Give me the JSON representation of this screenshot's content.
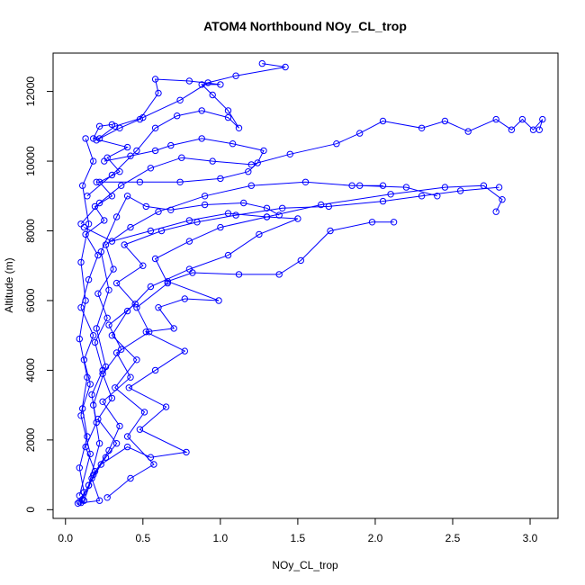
{
  "chart_data": {
    "type": "scatter",
    "title": "ATOM4 Northbound NOy_CL_trop",
    "xlabel": "NOy_CL_trop",
    "ylabel": "Altitude (m)",
    "xlim": [
      -0.08,
      3.18
    ],
    "ylim": [
      -250,
      13100
    ],
    "x_ticks": [
      0.0,
      0.5,
      1.0,
      1.5,
      2.0,
      2.5,
      3.0
    ],
    "x_tick_labels": [
      "0.0",
      "0.5",
      "1.0",
      "1.5",
      "2.0",
      "2.5",
      "3.0"
    ],
    "y_ticks": [
      0,
      2000,
      4000,
      6000,
      8000,
      10000,
      12000
    ],
    "y_tick_labels": [
      "0",
      "2000",
      "4000",
      "6000",
      "8000",
      "10000",
      "12000"
    ],
    "marker": "open-circle",
    "connected": true,
    "series_color": "#0000ff",
    "grid": false,
    "series": [
      {
        "points": [
          [
            0.1,
            200
          ],
          [
            0.12,
            500
          ],
          [
            0.09,
            1200
          ],
          [
            0.14,
            2100
          ],
          [
            0.11,
            2900
          ],
          [
            0.16,
            3600
          ],
          [
            0.12,
            4300
          ],
          [
            0.18,
            5000
          ],
          [
            0.1,
            5800
          ],
          [
            0.15,
            6600
          ],
          [
            0.21,
            7300
          ],
          [
            0.13,
            7900
          ],
          [
            0.25,
            8300
          ],
          [
            0.19,
            8700
          ],
          [
            0.3,
            9000
          ],
          [
            0.22,
            9400
          ],
          [
            0.35,
            9700
          ],
          [
            0.27,
            10100
          ],
          [
            0.4,
            10400
          ],
          [
            0.18,
            10650
          ],
          [
            0.22,
            11000
          ],
          [
            0.3,
            11050
          ]
        ]
      },
      {
        "points": [
          [
            0.08,
            180
          ],
          [
            0.22,
            260
          ],
          [
            0.17,
            900
          ],
          [
            0.26,
            1500
          ],
          [
            0.33,
            1900
          ],
          [
            0.21,
            2600
          ],
          [
            0.3,
            3200
          ],
          [
            0.24,
            3900
          ],
          [
            0.36,
            4600
          ],
          [
            0.28,
            5300
          ],
          [
            0.45,
            5900
          ],
          [
            0.33,
            6500
          ],
          [
            0.5,
            7000
          ],
          [
            0.38,
            7600
          ],
          [
            0.62,
            8000
          ],
          [
            0.85,
            8250
          ],
          [
            1.1,
            8450
          ],
          [
            1.4,
            8650
          ],
          [
            1.7,
            8700
          ],
          [
            2.05,
            8850
          ],
          [
            2.3,
            9000
          ],
          [
            2.55,
            9150
          ],
          [
            2.8,
            9250
          ]
        ]
      },
      {
        "points": [
          [
            0.09,
            220
          ],
          [
            0.15,
            700
          ],
          [
            0.23,
            1300
          ],
          [
            0.4,
            1800
          ],
          [
            0.55,
            1500
          ],
          [
            0.78,
            1650
          ],
          [
            0.48,
            2300
          ],
          [
            0.65,
            2950
          ],
          [
            0.41,
            3500
          ],
          [
            0.58,
            4000
          ],
          [
            0.77,
            4550
          ],
          [
            0.52,
            5100
          ],
          [
            0.7,
            5200
          ],
          [
            0.6,
            5800
          ],
          [
            0.77,
            6050
          ],
          [
            0.99,
            6000
          ],
          [
            0.66,
            6550
          ],
          [
            0.82,
            6800
          ],
          [
            1.12,
            6750
          ],
          [
            1.38,
            6750
          ],
          [
            1.52,
            7150
          ],
          [
            1.71,
            8000
          ],
          [
            1.98,
            8250
          ],
          [
            2.12,
            8250
          ]
        ]
      },
      {
        "points": [
          [
            0.11,
            300
          ],
          [
            0.19,
            1100
          ],
          [
            0.13,
            1800
          ],
          [
            0.2,
            2500
          ],
          [
            0.17,
            3300
          ],
          [
            0.24,
            4000
          ],
          [
            0.19,
            4800
          ],
          [
            0.27,
            5500
          ],
          [
            0.21,
            6200
          ],
          [
            0.31,
            6900
          ],
          [
            0.26,
            7600
          ],
          [
            0.42,
            8100
          ],
          [
            0.6,
            8550
          ],
          [
            0.9,
            9000
          ],
          [
            1.2,
            9300
          ],
          [
            1.55,
            9400
          ],
          [
            1.85,
            9300
          ],
          [
            2.05,
            9300
          ],
          [
            1.9,
            9300
          ],
          [
            2.2,
            9250
          ],
          [
            2.4,
            9000
          ]
        ]
      },
      {
        "points": [
          [
            0.12,
            260
          ],
          [
            0.18,
            1000
          ],
          [
            0.28,
            1700
          ],
          [
            0.35,
            2400
          ],
          [
            0.24,
            3100
          ],
          [
            0.42,
            3800
          ],
          [
            0.33,
            4500
          ],
          [
            0.54,
            5100
          ],
          [
            0.46,
            5800
          ],
          [
            0.66,
            6500
          ],
          [
            0.58,
            7200
          ],
          [
            0.8,
            7700
          ],
          [
            1.0,
            8100
          ],
          [
            1.3,
            8400
          ],
          [
            1.65,
            8750
          ],
          [
            2.1,
            9050
          ],
          [
            2.45,
            9250
          ],
          [
            2.7,
            9300
          ],
          [
            2.82,
            8900
          ],
          [
            2.78,
            8550
          ]
        ]
      },
      {
        "points": [
          [
            0.1,
            8200
          ],
          [
            0.22,
            8800
          ],
          [
            0.36,
            9300
          ],
          [
            0.55,
            9800
          ],
          [
            0.75,
            10100
          ],
          [
            0.95,
            10000
          ],
          [
            1.2,
            9900
          ],
          [
            1.45,
            10200
          ],
          [
            1.75,
            10500
          ],
          [
            1.9,
            10800
          ],
          [
            2.05,
            11150
          ],
          [
            2.3,
            10950
          ],
          [
            2.45,
            11150
          ],
          [
            2.6,
            10850
          ],
          [
            2.78,
            11200
          ],
          [
            2.88,
            10900
          ],
          [
            2.95,
            11200
          ],
          [
            3.02,
            10900
          ],
          [
            3.08,
            11200
          ],
          [
            3.06,
            10900
          ]
        ]
      },
      {
        "points": [
          [
            0.14,
            9000
          ],
          [
            0.3,
            9600
          ],
          [
            0.46,
            10300
          ],
          [
            0.58,
            10950
          ],
          [
            0.72,
            11300
          ],
          [
            0.88,
            11450
          ],
          [
            1.05,
            11250
          ],
          [
            1.12,
            10950
          ],
          [
            1.05,
            11450
          ],
          [
            0.95,
            11900
          ],
          [
            0.88,
            12200
          ],
          [
            1.0,
            12200
          ],
          [
            0.8,
            12300
          ],
          [
            0.58,
            12350
          ],
          [
            0.6,
            11950
          ],
          [
            0.48,
            11200
          ],
          [
            0.35,
            10950
          ],
          [
            0.22,
            10650
          ]
        ]
      },
      {
        "points": [
          [
            0.12,
            8100
          ],
          [
            0.3,
            7700
          ],
          [
            0.55,
            8000
          ],
          [
            0.8,
            8300
          ],
          [
            1.05,
            8500
          ],
          [
            1.3,
            8400
          ],
          [
            1.5,
            8350
          ],
          [
            1.25,
            7900
          ],
          [
            1.05,
            7300
          ],
          [
            0.8,
            6900
          ],
          [
            0.55,
            6400
          ],
          [
            0.4,
            5700
          ],
          [
            0.3,
            5000
          ],
          [
            0.46,
            4300
          ],
          [
            0.32,
            3500
          ],
          [
            0.51,
            2800
          ],
          [
            0.4,
            2100
          ],
          [
            0.57,
            1300
          ],
          [
            0.42,
            900
          ],
          [
            0.27,
            350
          ]
        ]
      },
      {
        "points": [
          [
            0.2,
            9400
          ],
          [
            0.48,
            9400
          ],
          [
            0.74,
            9400
          ],
          [
            1.0,
            9500
          ],
          [
            1.18,
            9700
          ],
          [
            1.24,
            9950
          ],
          [
            1.28,
            10300
          ],
          [
            1.08,
            10500
          ],
          [
            0.88,
            10650
          ],
          [
            0.68,
            10450
          ],
          [
            0.58,
            10300
          ],
          [
            0.42,
            10150
          ],
          [
            0.25,
            10000
          ]
        ]
      },
      {
        "points": [
          [
            1.27,
            12800
          ],
          [
            1.42,
            12700
          ],
          [
            1.1,
            12450
          ],
          [
            0.92,
            12250
          ],
          [
            0.74,
            11750
          ],
          [
            0.5,
            11250
          ],
          [
            0.32,
            11000
          ],
          [
            0.2,
            10600
          ]
        ]
      },
      {
        "points": [
          [
            0.09,
            400
          ],
          [
            0.16,
            1600
          ],
          [
            0.1,
            2700
          ],
          [
            0.14,
            3800
          ],
          [
            0.09,
            4900
          ],
          [
            0.13,
            6000
          ],
          [
            0.1,
            7100
          ],
          [
            0.15,
            8200
          ],
          [
            0.11,
            9300
          ],
          [
            0.18,
            10000
          ],
          [
            0.13,
            10650
          ]
        ]
      },
      {
        "points": [
          [
            0.15,
            700
          ],
          [
            0.22,
            1900
          ],
          [
            0.18,
            3000
          ],
          [
            0.26,
            4100
          ],
          [
            0.2,
            5200
          ],
          [
            0.28,
            6300
          ],
          [
            0.23,
            7400
          ],
          [
            0.33,
            8400
          ],
          [
            0.4,
            9000
          ],
          [
            0.52,
            8700
          ],
          [
            0.68,
            8600
          ],
          [
            0.9,
            8750
          ],
          [
            1.15,
            8800
          ],
          [
            1.3,
            8650
          ],
          [
            1.38,
            8450
          ]
        ]
      }
    ]
  }
}
